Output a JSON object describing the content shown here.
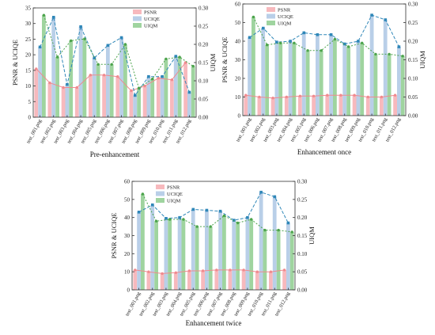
{
  "colors": {
    "psnr_bar": "#f7b9bd",
    "ucique_bar": "#b9cfe8",
    "uiqm_bar": "#9fd49f",
    "psnr_line": "#f08a8f",
    "ucique_line": "#2f87b8",
    "uiqm_line": "#4ca34c",
    "axis": "#333333"
  },
  "chart_data": [
    {
      "type": "bar",
      "title": "",
      "xlabel": "Pre-enhancement",
      "ylabel": "PSNR & UCIQE",
      "y2label": "UIQM",
      "ylim": [
        0,
        35
      ],
      "yticks": [
        0,
        5,
        10,
        15,
        20,
        25,
        30,
        35
      ],
      "y2lim": [
        0,
        0.3
      ],
      "y2ticks": [
        "0.00",
        "0.05",
        "0.10",
        "0.15",
        "0.20",
        "0.25",
        "0.30"
      ],
      "categories": [
        "test_001.png",
        "test_002.png",
        "test_003.png",
        "test_004.png",
        "test_005.png",
        "test_006.png",
        "test_007.png",
        "test_008.png",
        "test_009.png",
        "test_010.png",
        "test_011.png",
        "test_012.png"
      ],
      "series": [
        {
          "name": "PSNR",
          "axis": "left",
          "values": [
            15.5,
            11.0,
            9.5,
            9.5,
            13.5,
            13.5,
            13.0,
            8.5,
            10.0,
            12.5,
            12.0,
            17.5
          ]
        },
        {
          "name": "UCIQE",
          "axis": "left",
          "values": [
            22.5,
            32.0,
            10.5,
            29.0,
            19.0,
            23.0,
            25.5,
            7.0,
            13.0,
            13.0,
            19.5,
            8.0
          ]
        },
        {
          "name": "UIQM",
          "axis": "right",
          "values": [
            0.28,
            0.165,
            0.21,
            0.215,
            0.145,
            0.145,
            0.2,
            0.08,
            0.105,
            0.16,
            0.165,
            0.14
          ]
        }
      ],
      "legend": "top-right",
      "grid": false
    },
    {
      "type": "bar",
      "title": "",
      "xlabel": "Enhancement once",
      "ylabel": "PSNR & UCIQE",
      "y2label": "UIQM",
      "ylim": [
        0,
        60
      ],
      "yticks": [
        0,
        10,
        20,
        30,
        40,
        50,
        60
      ],
      "y2lim": [
        0,
        0.3
      ],
      "y2ticks": [
        "0.00",
        "0.05",
        "0.10",
        "0.15",
        "0.20",
        "0.25",
        "0.30"
      ],
      "categories": [
        "test_001.png",
        "test_002.png",
        "test_003.png",
        "test_004.png",
        "test_005.png",
        "test_006.png",
        "test_007.png",
        "test_008.png",
        "test_009.png",
        "test_010.png",
        "test_011.png",
        "test_012.png"
      ],
      "series": [
        {
          "name": "PSNR",
          "axis": "left",
          "values": [
            11.0,
            10.0,
            9.5,
            10.0,
            10.5,
            10.5,
            11.0,
            11.0,
            11.0,
            10.0,
            10.0,
            11.0
          ]
        },
        {
          "name": "UCIQE",
          "axis": "left",
          "values": [
            42.0,
            47.0,
            39.5,
            40.0,
            44.5,
            43.5,
            43.5,
            38.5,
            40.0,
            54.0,
            51.5,
            37.0
          ]
        },
        {
          "name": "UIQM",
          "axis": "right",
          "values": [
            0.265,
            0.19,
            0.195,
            0.195,
            0.175,
            0.175,
            0.205,
            0.185,
            0.195,
            0.165,
            0.165,
            0.16
          ]
        }
      ],
      "legend": "top-left",
      "grid": false
    },
    {
      "type": "bar",
      "title": "",
      "xlabel": "Enhancement twice",
      "ylabel": "PSNR & UCIQE",
      "y2label": "UIQM",
      "ylim": [
        0,
        60
      ],
      "yticks": [
        0,
        10,
        20,
        30,
        40,
        50,
        60
      ],
      "y2lim": [
        0,
        0.3
      ],
      "y2ticks": [
        "0.00",
        "0.05",
        "0.10",
        "0.15",
        "0.20",
        "0.25",
        "0.30"
      ],
      "categories": [
        "test_001.png",
        "test_002.png",
        "test_003.png",
        "test_004.png",
        "test_005.png",
        "test_006.png",
        "test_007.png",
        "test_008.png",
        "test_009.png",
        "test_010.png",
        "test_011.png",
        "test_012.png"
      ],
      "series": [
        {
          "name": "PSNR",
          "axis": "left",
          "values": [
            11.0,
            10.0,
            9.0,
            9.5,
            10.5,
            10.5,
            11.0,
            11.0,
            11.0,
            10.0,
            10.0,
            11.0
          ]
        },
        {
          "name": "UCIQE",
          "axis": "left",
          "values": [
            43.0,
            47.0,
            39.5,
            40.0,
            44.5,
            44.0,
            43.5,
            38.5,
            40.0,
            54.0,
            51.5,
            37.0
          ]
        },
        {
          "name": "UIQM",
          "axis": "right",
          "values": [
            0.265,
            0.19,
            0.195,
            0.195,
            0.175,
            0.175,
            0.205,
            0.185,
            0.195,
            0.165,
            0.165,
            0.16
          ]
        }
      ],
      "legend": "top-left",
      "grid": false
    }
  ]
}
